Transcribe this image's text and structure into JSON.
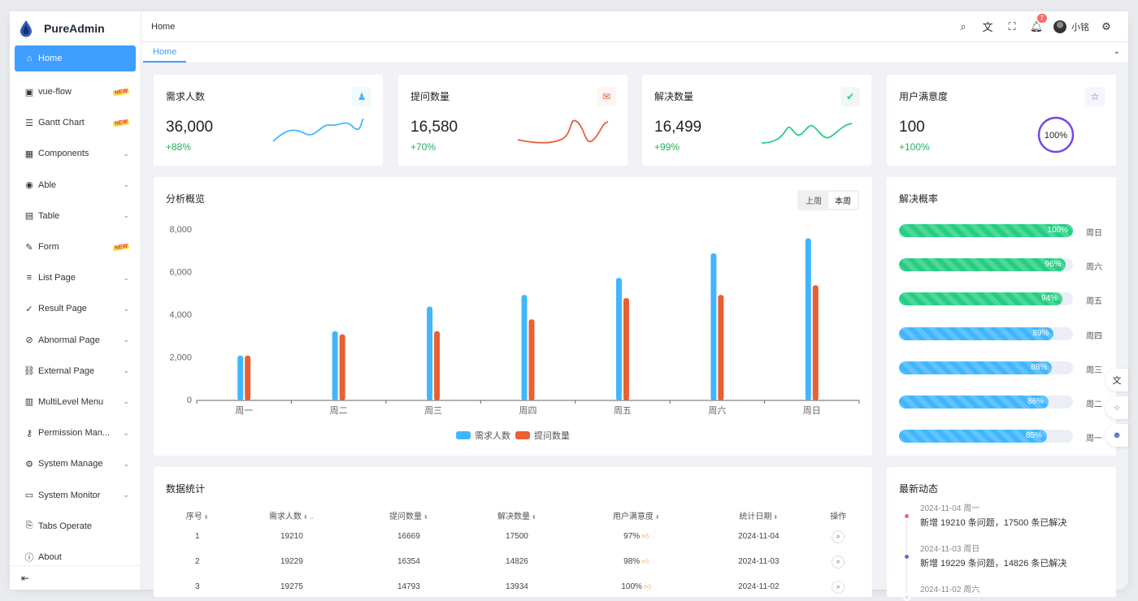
{
  "brand": {
    "name": "PureAdmin"
  },
  "sidebar": {
    "items": [
      {
        "label": "Home",
        "icon": "home-icon",
        "glyph": "⌂",
        "chev": "",
        "badge": ""
      },
      {
        "label": "vue-flow",
        "icon": "flow-icon",
        "glyph": "▣",
        "chev": "",
        "badge": "NEW"
      },
      {
        "label": "Gantt Chart",
        "icon": "gantt-icon",
        "glyph": "☰",
        "chev": "",
        "badge": "NEW"
      },
      {
        "label": "Components",
        "icon": "grid-icon",
        "glyph": "▦",
        "chev": "⌄",
        "badge": ""
      },
      {
        "label": "Able",
        "icon": "able-icon",
        "glyph": "◉",
        "chev": "⌄",
        "badge": ""
      },
      {
        "label": "Table",
        "icon": "table-icon",
        "glyph": "▤",
        "chev": "⌄",
        "badge": ""
      },
      {
        "label": "Form",
        "icon": "form-icon",
        "glyph": "✎",
        "chev": "",
        "badge": "NEW"
      },
      {
        "label": "List Page",
        "icon": "list-icon",
        "glyph": "≡",
        "chev": "⌄",
        "badge": ""
      },
      {
        "label": "Result Page",
        "icon": "result-icon",
        "glyph": "✓",
        "chev": "⌄",
        "badge": ""
      },
      {
        "label": "Abnormal Page",
        "icon": "abnormal-icon",
        "glyph": "⊘",
        "chev": "⌄",
        "badge": ""
      },
      {
        "label": "External Page",
        "icon": "link-icon",
        "glyph": "⛓",
        "chev": "⌄",
        "badge": ""
      },
      {
        "label": "MultiLevel Menu",
        "icon": "menu-icon",
        "glyph": "▥",
        "chev": "⌄",
        "badge": ""
      },
      {
        "label": "Permission Man...",
        "icon": "key-icon",
        "glyph": "⚷",
        "chev": "⌄",
        "badge": ""
      },
      {
        "label": "System Manage",
        "icon": "gear-icon",
        "glyph": "⚙",
        "chev": "⌄",
        "badge": ""
      },
      {
        "label": "System Monitor",
        "icon": "monitor-icon",
        "glyph": "▭",
        "chev": "⌄",
        "badge": ""
      },
      {
        "label": "Tabs Operate",
        "icon": "bookmark-icon",
        "glyph": "⎘",
        "chev": "",
        "badge": ""
      },
      {
        "label": "About",
        "icon": "about-icon",
        "glyph": "ⓘ",
        "chev": "",
        "badge": ""
      }
    ]
  },
  "topbar": {
    "breadcrumb": "Home",
    "notif_count": "7",
    "user_name": "小铭"
  },
  "tabs": [
    {
      "label": "Home"
    }
  ],
  "stats": [
    {
      "title": "需求人数",
      "value": "36,000",
      "pct": "+88%",
      "icon": "users-icon",
      "glyph": "♟",
      "color": "#41b6ff",
      "bg": "#effaff"
    },
    {
      "title": "提问数量",
      "value": "16,580",
      "pct": "+70%",
      "icon": "question-icon",
      "glyph": "✉",
      "color": "#e85f33",
      "bg": "#fff5f4"
    },
    {
      "title": "解决数量",
      "value": "16,499",
      "pct": "+99%",
      "icon": "check-icon",
      "glyph": "✔",
      "color": "#26ce83",
      "bg": "#eff8f4"
    },
    {
      "title": "用户满意度",
      "value": "100",
      "pct": "+100%",
      "icon": "star-icon",
      "glyph": "☆",
      "color": "#7846e5",
      "bg": "#f6f4fe",
      "ring": "100%"
    }
  ],
  "overview": {
    "title": "分析概览",
    "seg": [
      "上周",
      "本周"
    ]
  },
  "chart_data": {
    "type": "bar",
    "categories": [
      "周一",
      "周二",
      "周三",
      "周四",
      "周五",
      "周六",
      "周日"
    ],
    "series": [
      {
        "name": "需求人数",
        "values": [
          2100,
          3250,
          4400,
          4950,
          5750,
          6900,
          7600
        ],
        "color": "#41b6ff"
      },
      {
        "name": "提问数量",
        "values": [
          2100,
          3100,
          3250,
          3800,
          4800,
          4950,
          5400
        ],
        "color": "#e86033"
      }
    ],
    "ylim": [
      0,
      8000
    ],
    "yticks": [
      "0",
      "2,000",
      "4,000",
      "6,000",
      "8,000"
    ],
    "legend": "bottom",
    "grid": false
  },
  "solve_rate": {
    "title": "解决概率",
    "rows": [
      {
        "pct": 100,
        "label": "100%",
        "day": "周日",
        "color": "#26ce83"
      },
      {
        "pct": 96,
        "label": "96%",
        "day": "周六",
        "color": "#26ce83"
      },
      {
        "pct": 94,
        "label": "94%",
        "day": "周五",
        "color": "#26ce83"
      },
      {
        "pct": 89,
        "label": "89%",
        "day": "周四",
        "color": "#41b6ff"
      },
      {
        "pct": 88,
        "label": "88%",
        "day": "周三",
        "color": "#41b6ff"
      },
      {
        "pct": 86,
        "label": "86%",
        "day": "周二",
        "color": "#41b6ff"
      },
      {
        "pct": 85,
        "label": "85%",
        "day": "周一",
        "color": "#41b6ff"
      }
    ]
  },
  "table": {
    "title": "数据统计",
    "headers": [
      "序号",
      "需求人数",
      "提问数量",
      "解决数量",
      "用户满意度",
      "统计日期",
      "操作"
    ],
    "rows": [
      [
        "1",
        "19210",
        "16669",
        "17500",
        "97%",
        "2024-11-04"
      ],
      [
        "2",
        "19229",
        "16354",
        "14826",
        "98%",
        "2024-11-03"
      ],
      [
        "3",
        "19275",
        "14793",
        "13934",
        "100%",
        "2024-11-02"
      ]
    ]
  },
  "news": {
    "title": "最新动态",
    "items": [
      {
        "time": "2024-11-04 周一",
        "text": "新增 19210 条问题，17500 条已解决",
        "color": "#e85f9a"
      },
      {
        "time": "2024-11-03 周日",
        "text": "新增 19229 条问题，14826 条已解决",
        "color": "#5c6ad6"
      },
      {
        "time": "2024-11-02 周六",
        "text": "",
        "color": "#e4e7ed"
      }
    ]
  }
}
